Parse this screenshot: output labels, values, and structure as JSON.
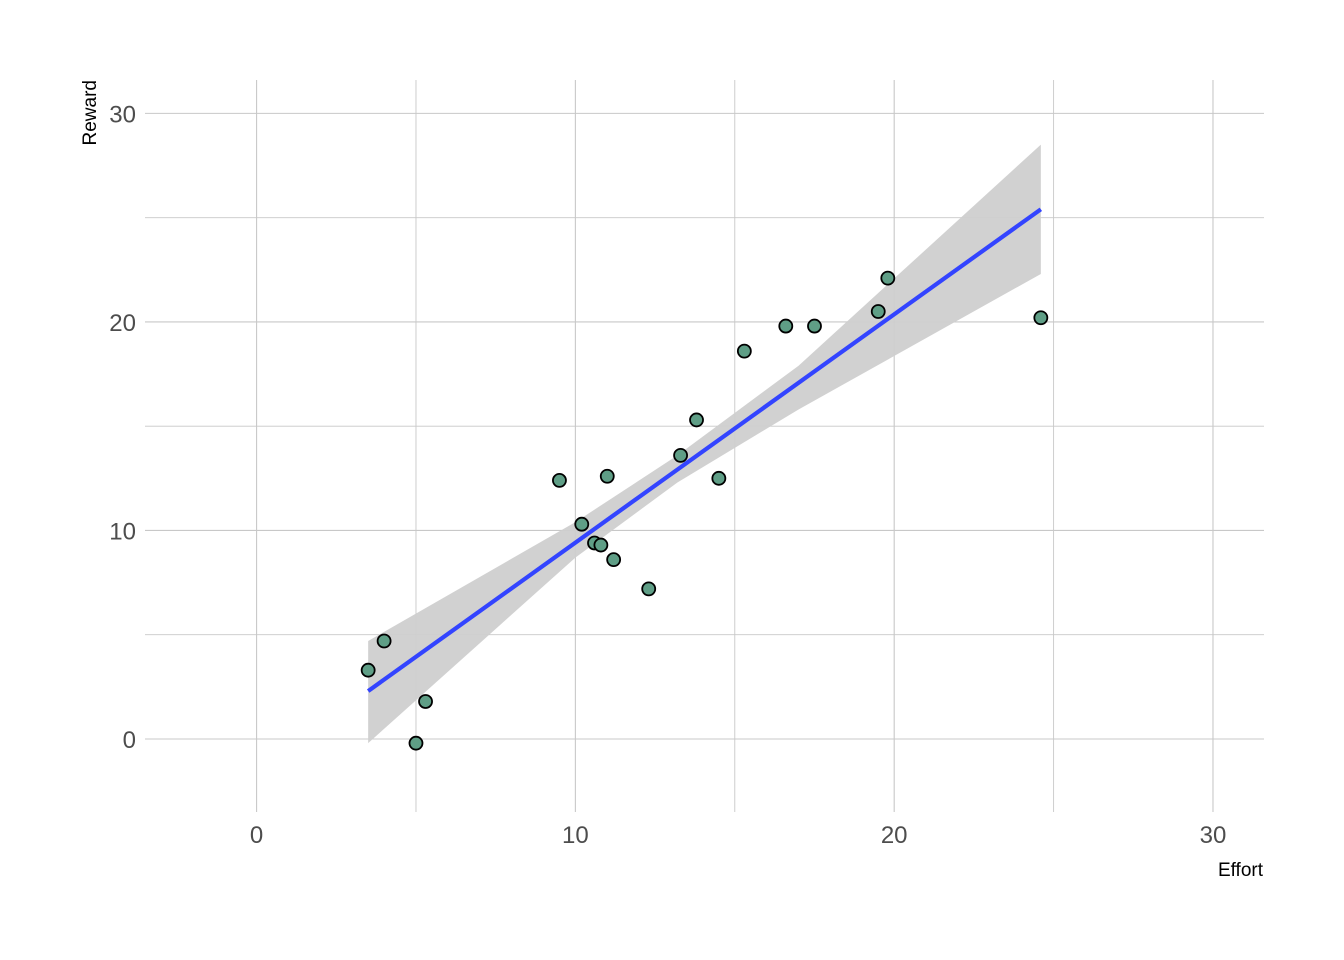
{
  "chart_data": {
    "type": "scatter",
    "xlabel": "Effort",
    "ylabel": "Reward",
    "xlim": [
      -3.5,
      31.6
    ],
    "ylim": [
      -3.5,
      31.6
    ],
    "x_ticks": [
      0,
      10,
      20,
      30
    ],
    "y_ticks": [
      0,
      10,
      20,
      30
    ],
    "minor_ticks": [
      5,
      15,
      25
    ],
    "grid": true,
    "legend": "none",
    "points": [
      {
        "x": 3.5,
        "y": 3.3
      },
      {
        "x": 4.0,
        "y": 4.7
      },
      {
        "x": 5.0,
        "y": -0.2
      },
      {
        "x": 5.3,
        "y": 1.8
      },
      {
        "x": 9.5,
        "y": 12.4
      },
      {
        "x": 10.2,
        "y": 10.3
      },
      {
        "x": 10.6,
        "y": 9.4
      },
      {
        "x": 10.8,
        "y": 9.3
      },
      {
        "x": 11.0,
        "y": 12.6
      },
      {
        "x": 11.2,
        "y": 8.6
      },
      {
        "x": 12.3,
        "y": 7.2
      },
      {
        "x": 13.3,
        "y": 13.6
      },
      {
        "x": 13.8,
        "y": 15.3
      },
      {
        "x": 14.5,
        "y": 12.5
      },
      {
        "x": 15.3,
        "y": 18.6
      },
      {
        "x": 16.6,
        "y": 19.8
      },
      {
        "x": 17.5,
        "y": 19.8
      },
      {
        "x": 19.5,
        "y": 20.5
      },
      {
        "x": 19.8,
        "y": 22.1
      },
      {
        "x": 24.6,
        "y": 20.2
      }
    ],
    "fit_line": {
      "type": "linear",
      "start": {
        "x": 3.5,
        "y": 2.3
      },
      "end": {
        "x": 24.6,
        "y": 25.4
      },
      "confidence_band": [
        {
          "x": 3.5,
          "lower": -0.2,
          "upper": 4.7
        },
        {
          "x": 10.0,
          "lower": 8.7,
          "upper": 10.4
        },
        {
          "x": 13.2,
          "lower": 12.3,
          "upper": 13.6
        },
        {
          "x": 17.0,
          "lower": 15.8,
          "upper": 17.9
        },
        {
          "x": 24.6,
          "lower": 22.3,
          "upper": 28.5
        }
      ]
    },
    "colors": {
      "point_fill": "#5f9e86",
      "point_stroke": "#000000",
      "line": "#3344ff",
      "band": "#cfcfcf",
      "grid": "#c8c8c8"
    }
  }
}
